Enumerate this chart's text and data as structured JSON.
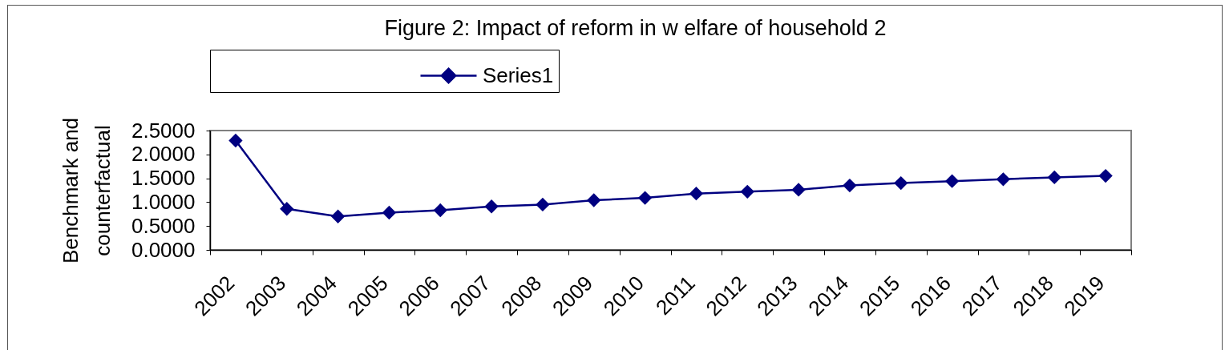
{
  "chart_data": {
    "type": "line",
    "title": "Figure 2: Impact of reform in w elfare of household 2",
    "ylabel": "Benchmark and counterfactual",
    "categories": [
      "2002",
      "2003",
      "2004",
      "2005",
      "2006",
      "2007",
      "2008",
      "2009",
      "2010",
      "2011",
      "2012",
      "2013",
      "2014",
      "2015",
      "2016",
      "2017",
      "2018",
      "2019"
    ],
    "series": [
      {
        "name": "Series1",
        "color": "#000080",
        "values": [
          2.29,
          0.86,
          0.7,
          0.78,
          0.83,
          0.91,
          0.95,
          1.04,
          1.09,
          1.18,
          1.22,
          1.26,
          1.35,
          1.4,
          1.44,
          1.48,
          1.52,
          1.55
        ]
      }
    ],
    "ylim": [
      0,
      2.5
    ],
    "yticks": [
      {
        "value": 0,
        "label": "0.0000"
      },
      {
        "value": 0.5,
        "label": "0.5000"
      },
      {
        "value": 1,
        "label": "1.0000"
      },
      {
        "value": 1.5,
        "label": "1.5000"
      },
      {
        "value": 2,
        "label": "2.0000"
      },
      {
        "value": 2.5,
        "label": "2.5000"
      }
    ],
    "legend": "top",
    "marker": "diamond",
    "line_style": "solid"
  }
}
